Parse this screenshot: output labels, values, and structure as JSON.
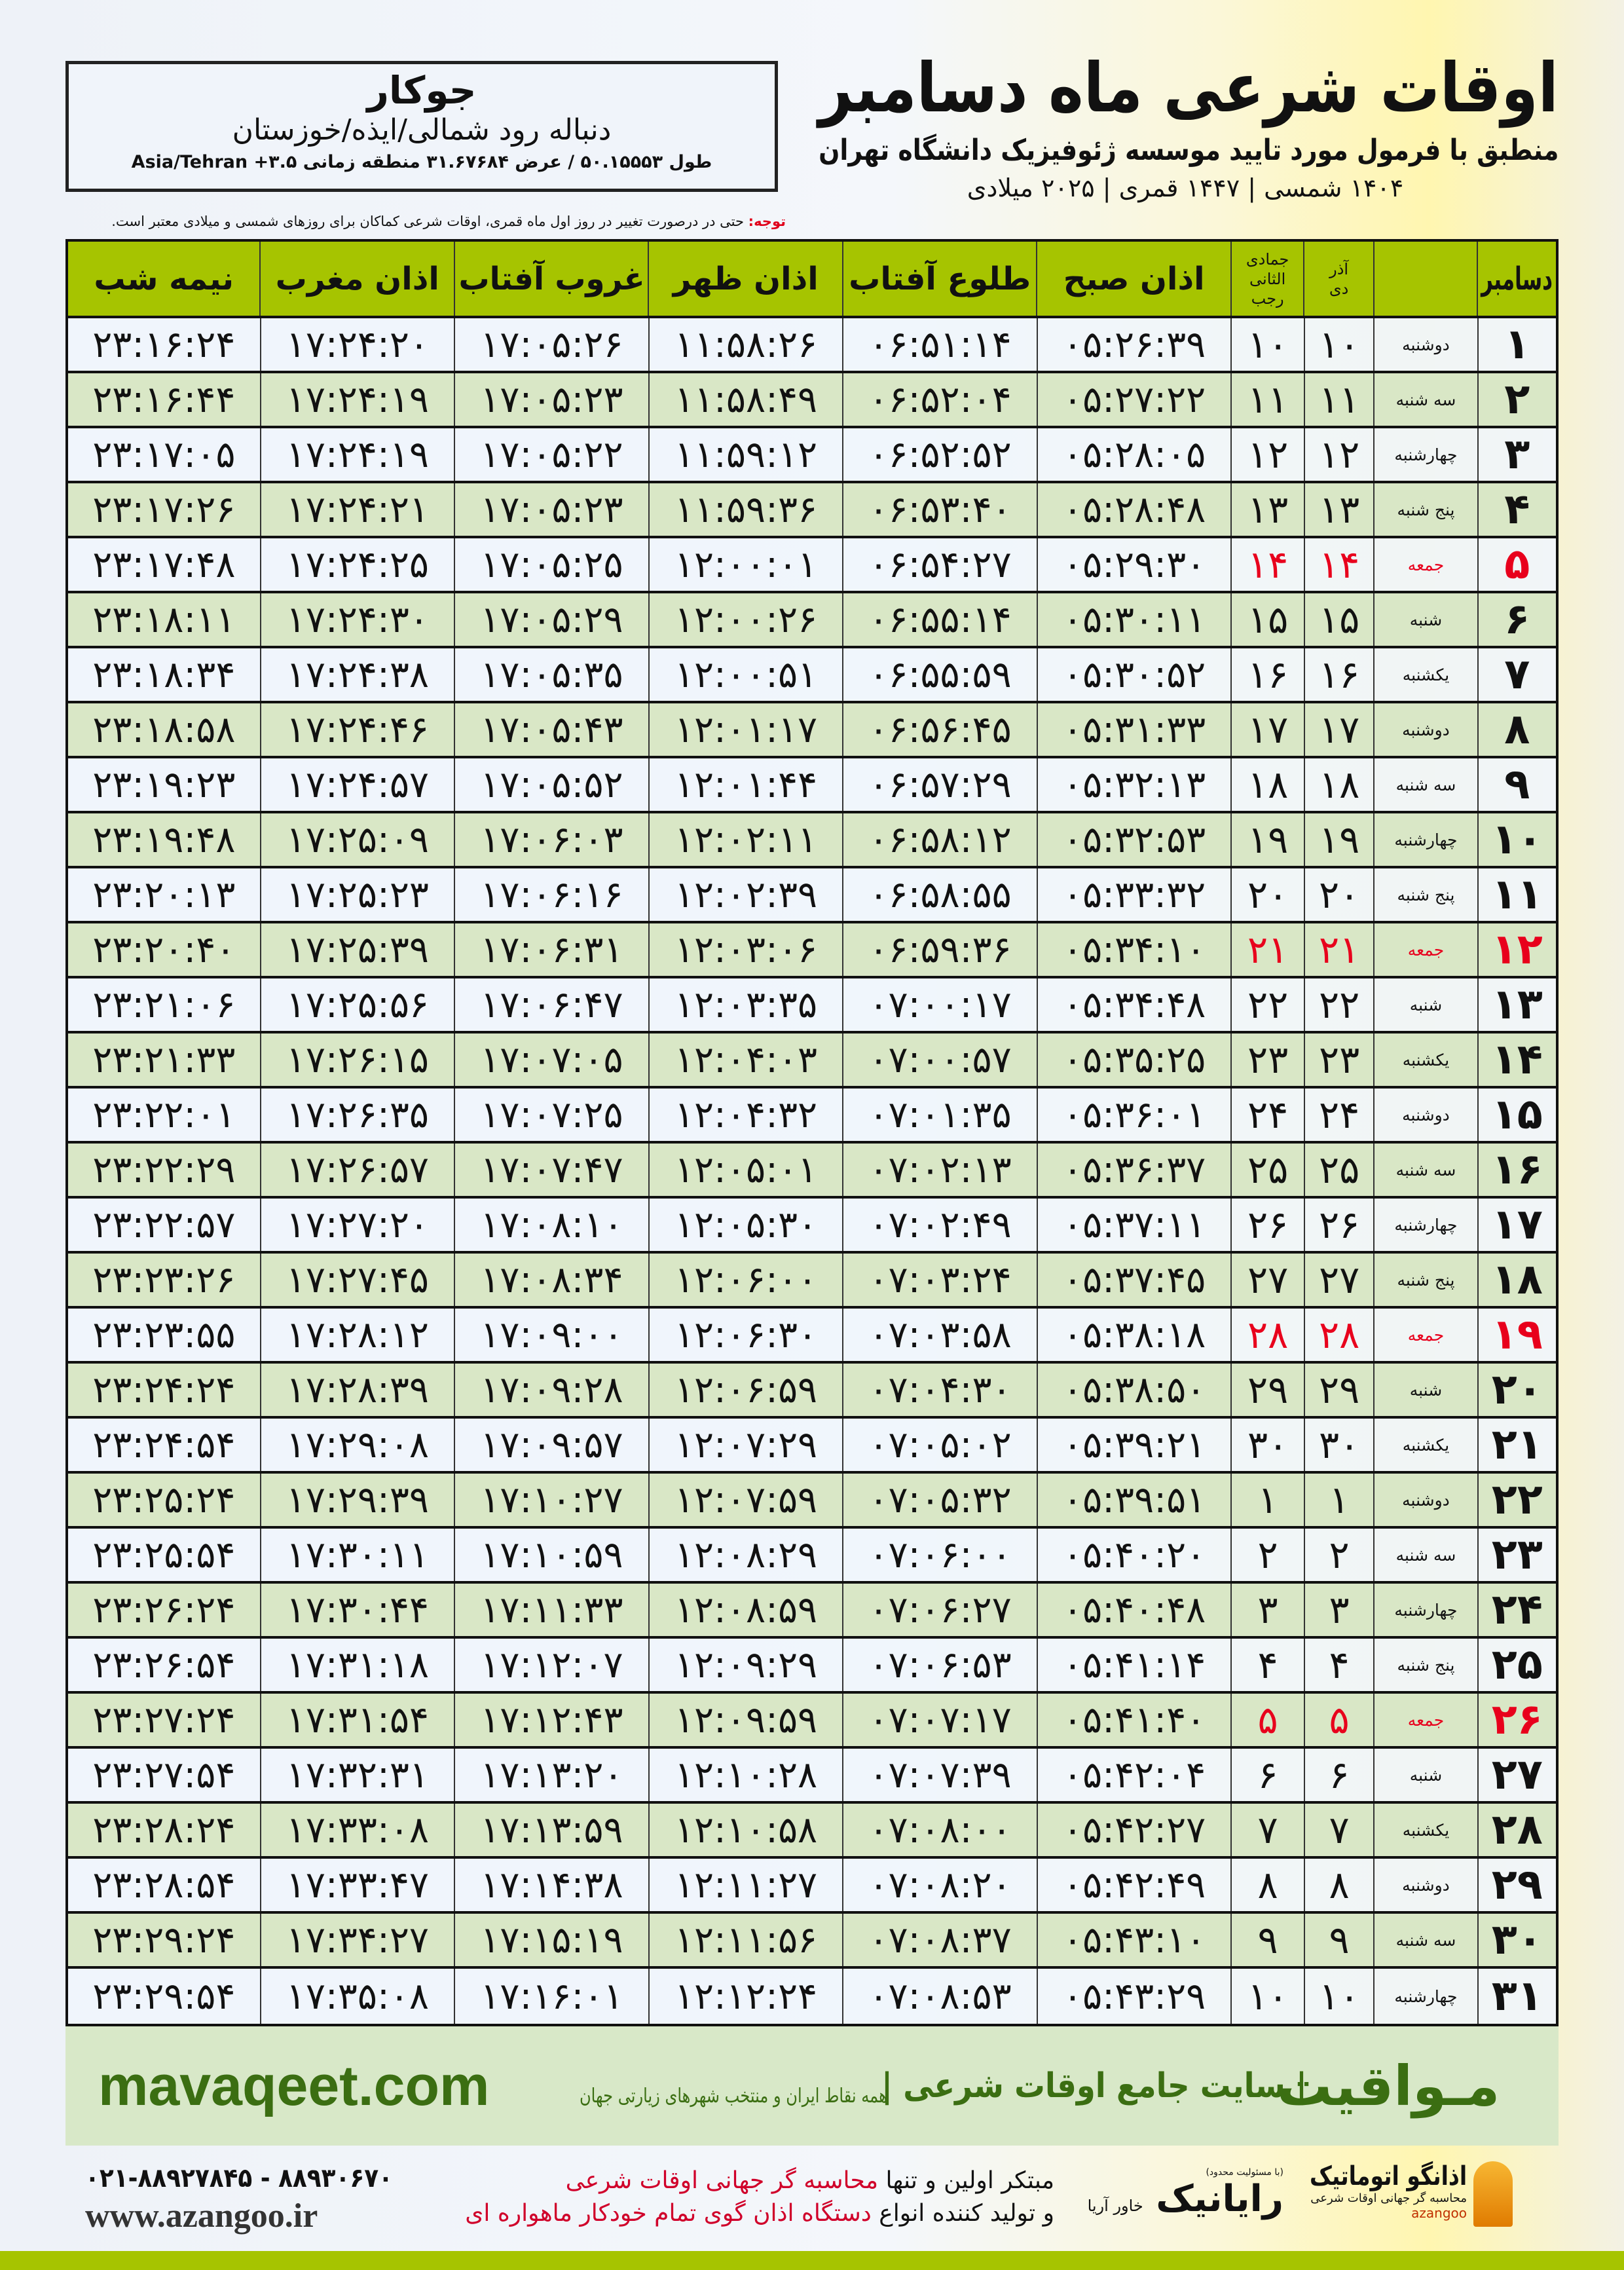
{
  "header": {
    "title": "اوقات شرعی ماه دسامبر",
    "subtitle": "منطبق با فرمول مورد تایید موسسه ژئوفیزیک دانشگاه تهران",
    "dates": "۱۴۰۴ شمسی | ۱۴۴۷ قمری | ۲۰۲۵ میلادی",
    "note_label": "توجه:",
    "note_text": " حتی در درصورت تغییر در روز اول ماه قمری، اوقات شرعی کماکان برای روزهای شمسی و میلادی معتبر است."
  },
  "location": {
    "name": "جوکار",
    "region": "دنباله رود شمالی/ایذه/خوزستان",
    "coords": "طول ۵۰.۱۵۵۵۳ / عرض ۳۱.۶۷۶۸۴ منطقه زمانی ۳.۵+ Asia/Tehran"
  },
  "table": {
    "columns": {
      "day": "دسامبر",
      "dey": "دی",
      "dey_top": "آذر",
      "rajab": "رجب",
      "rajab_top": "جمادی الثانی",
      "sobh": "اذان صبح",
      "tolu": "طلوع آفتاب",
      "zohr": "اذان ظهر",
      "ghorub": "غروب آفتاب",
      "maghrib": "اذان مغرب",
      "nimeshab": "نیمه شب"
    },
    "friday_color": "#e8001c",
    "header_color": "#a6c400",
    "rows": [
      [
        "۱",
        "دوشنبه",
        "۱۰",
        "۱۰",
        "۰۵:۲۶:۳۹",
        "۰۶:۵۱:۱۴",
        "۱۱:۵۸:۲۶",
        "۱۷:۰۵:۲۶",
        "۱۷:۲۴:۲۰",
        "۲۳:۱۶:۲۴"
      ],
      [
        "۲",
        "سه شنبه",
        "۱۱",
        "۱۱",
        "۰۵:۲۷:۲۲",
        "۰۶:۵۲:۰۴",
        "۱۱:۵۸:۴۹",
        "۱۷:۰۵:۲۳",
        "۱۷:۲۴:۱۹",
        "۲۳:۱۶:۴۴"
      ],
      [
        "۳",
        "چهارشنبه",
        "۱۲",
        "۱۲",
        "۰۵:۲۸:۰۵",
        "۰۶:۵۲:۵۲",
        "۱۱:۵۹:۱۲",
        "۱۷:۰۵:۲۲",
        "۱۷:۲۴:۱۹",
        "۲۳:۱۷:۰۵"
      ],
      [
        "۴",
        "پنج شنبه",
        "۱۳",
        "۱۳",
        "۰۵:۲۸:۴۸",
        "۰۶:۵۳:۴۰",
        "۱۱:۵۹:۳۶",
        "۱۷:۰۵:۲۳",
        "۱۷:۲۴:۲۱",
        "۲۳:۱۷:۲۶"
      ],
      [
        "۵",
        "جمعه",
        "۱۴",
        "۱۴",
        "۰۵:۲۹:۳۰",
        "۰۶:۵۴:۲۷",
        "۱۲:۰۰:۰۱",
        "۱۷:۰۵:۲۵",
        "۱۷:۲۴:۲۵",
        "۲۳:۱۷:۴۸"
      ],
      [
        "۶",
        "شنبه",
        "۱۵",
        "۱۵",
        "۰۵:۳۰:۱۱",
        "۰۶:۵۵:۱۴",
        "۱۲:۰۰:۲۶",
        "۱۷:۰۵:۲۹",
        "۱۷:۲۴:۳۰",
        "۲۳:۱۸:۱۱"
      ],
      [
        "۷",
        "یکشنبه",
        "۱۶",
        "۱۶",
        "۰۵:۳۰:۵۲",
        "۰۶:۵۵:۵۹",
        "۱۲:۰۰:۵۱",
        "۱۷:۰۵:۳۵",
        "۱۷:۲۴:۳۸",
        "۲۳:۱۸:۳۴"
      ],
      [
        "۸",
        "دوشنبه",
        "۱۷",
        "۱۷",
        "۰۵:۳۱:۳۳",
        "۰۶:۵۶:۴۵",
        "۱۲:۰۱:۱۷",
        "۱۷:۰۵:۴۳",
        "۱۷:۲۴:۴۶",
        "۲۳:۱۸:۵۸"
      ],
      [
        "۹",
        "سه شنبه",
        "۱۸",
        "۱۸",
        "۰۵:۳۲:۱۳",
        "۰۶:۵۷:۲۹",
        "۱۲:۰۱:۴۴",
        "۱۷:۰۵:۵۲",
        "۱۷:۲۴:۵۷",
        "۲۳:۱۹:۲۳"
      ],
      [
        "۱۰",
        "چهارشنبه",
        "۱۹",
        "۱۹",
        "۰۵:۳۲:۵۳",
        "۰۶:۵۸:۱۲",
        "۱۲:۰۲:۱۱",
        "۱۷:۰۶:۰۳",
        "۱۷:۲۵:۰۹",
        "۲۳:۱۹:۴۸"
      ],
      [
        "۱۱",
        "پنج شنبه",
        "۲۰",
        "۲۰",
        "۰۵:۳۳:۳۲",
        "۰۶:۵۸:۵۵",
        "۱۲:۰۲:۳۹",
        "۱۷:۰۶:۱۶",
        "۱۷:۲۵:۲۳",
        "۲۳:۲۰:۱۳"
      ],
      [
        "۱۲",
        "جمعه",
        "۲۱",
        "۲۱",
        "۰۵:۳۴:۱۰",
        "۰۶:۵۹:۳۶",
        "۱۲:۰۳:۰۶",
        "۱۷:۰۶:۳۱",
        "۱۷:۲۵:۳۹",
        "۲۳:۲۰:۴۰"
      ],
      [
        "۱۳",
        "شنبه",
        "۲۲",
        "۲۲",
        "۰۵:۳۴:۴۸",
        "۰۷:۰۰:۱۷",
        "۱۲:۰۳:۳۵",
        "۱۷:۰۶:۴۷",
        "۱۷:۲۵:۵۶",
        "۲۳:۲۱:۰۶"
      ],
      [
        "۱۴",
        "یکشنبه",
        "۲۳",
        "۲۳",
        "۰۵:۳۵:۲۵",
        "۰۷:۰۰:۵۷",
        "۱۲:۰۴:۰۳",
        "۱۷:۰۷:۰۵",
        "۱۷:۲۶:۱۵",
        "۲۳:۲۱:۳۳"
      ],
      [
        "۱۵",
        "دوشنبه",
        "۲۴",
        "۲۴",
        "۰۵:۳۶:۰۱",
        "۰۷:۰۱:۳۵",
        "۱۲:۰۴:۳۲",
        "۱۷:۰۷:۲۵",
        "۱۷:۲۶:۳۵",
        "۲۳:۲۲:۰۱"
      ],
      [
        "۱۶",
        "سه شنبه",
        "۲۵",
        "۲۵",
        "۰۵:۳۶:۳۷",
        "۰۷:۰۲:۱۳",
        "۱۲:۰۵:۰۱",
        "۱۷:۰۷:۴۷",
        "۱۷:۲۶:۵۷",
        "۲۳:۲۲:۲۹"
      ],
      [
        "۱۷",
        "چهارشنبه",
        "۲۶",
        "۲۶",
        "۰۵:۳۷:۱۱",
        "۰۷:۰۲:۴۹",
        "۱۲:۰۵:۳۰",
        "۱۷:۰۸:۱۰",
        "۱۷:۲۷:۲۰",
        "۲۳:۲۲:۵۷"
      ],
      [
        "۱۸",
        "پنج شنبه",
        "۲۷",
        "۲۷",
        "۰۵:۳۷:۴۵",
        "۰۷:۰۳:۲۴",
        "۱۲:۰۶:۰۰",
        "۱۷:۰۸:۳۴",
        "۱۷:۲۷:۴۵",
        "۲۳:۲۳:۲۶"
      ],
      [
        "۱۹",
        "جمعه",
        "۲۸",
        "۲۸",
        "۰۵:۳۸:۱۸",
        "۰۷:۰۳:۵۸",
        "۱۲:۰۶:۳۰",
        "۱۷:۰۹:۰۰",
        "۱۷:۲۸:۱۲",
        "۲۳:۲۳:۵۵"
      ],
      [
        "۲۰",
        "شنبه",
        "۲۹",
        "۲۹",
        "۰۵:۳۸:۵۰",
        "۰۷:۰۴:۳۰",
        "۱۲:۰۶:۵۹",
        "۱۷:۰۹:۲۸",
        "۱۷:۲۸:۳۹",
        "۲۳:۲۴:۲۴"
      ],
      [
        "۲۱",
        "یکشنبه",
        "۳۰",
        "۳۰",
        "۰۵:۳۹:۲۱",
        "۰۷:۰۵:۰۲",
        "۱۲:۰۷:۲۹",
        "۱۷:۰۹:۵۷",
        "۱۷:۲۹:۰۸",
        "۲۳:۲۴:۵۴"
      ],
      [
        "۲۲",
        "دوشنبه",
        "۱",
        "۱",
        "۰۵:۳۹:۵۱",
        "۰۷:۰۵:۳۲",
        "۱۲:۰۷:۵۹",
        "۱۷:۱۰:۲۷",
        "۱۷:۲۹:۳۹",
        "۲۳:۲۵:۲۴"
      ],
      [
        "۲۳",
        "سه شنبه",
        "۲",
        "۲",
        "۰۵:۴۰:۲۰",
        "۰۷:۰۶:۰۰",
        "۱۲:۰۸:۲۹",
        "۱۷:۱۰:۵۹",
        "۱۷:۳۰:۱۱",
        "۲۳:۲۵:۵۴"
      ],
      [
        "۲۴",
        "چهارشنبه",
        "۳",
        "۳",
        "۰۵:۴۰:۴۸",
        "۰۷:۰۶:۲۷",
        "۱۲:۰۸:۵۹",
        "۱۷:۱۱:۳۳",
        "۱۷:۳۰:۴۴",
        "۲۳:۲۶:۲۴"
      ],
      [
        "۲۵",
        "پنج شنبه",
        "۴",
        "۴",
        "۰۵:۴۱:۱۴",
        "۰۷:۰۶:۵۳",
        "۱۲:۰۹:۲۹",
        "۱۷:۱۲:۰۷",
        "۱۷:۳۱:۱۸",
        "۲۳:۲۶:۵۴"
      ],
      [
        "۲۶",
        "جمعه",
        "۵",
        "۵",
        "۰۵:۴۱:۴۰",
        "۰۷:۰۷:۱۷",
        "۱۲:۰۹:۵۹",
        "۱۷:۱۲:۴۳",
        "۱۷:۳۱:۵۴",
        "۲۳:۲۷:۲۴"
      ],
      [
        "۲۷",
        "شنبه",
        "۶",
        "۶",
        "۰۵:۴۲:۰۴",
        "۰۷:۰۷:۳۹",
        "۱۲:۱۰:۲۸",
        "۱۷:۱۳:۲۰",
        "۱۷:۳۲:۳۱",
        "۲۳:۲۷:۵۴"
      ],
      [
        "۲۸",
        "یکشنبه",
        "۷",
        "۷",
        "۰۵:۴۲:۲۷",
        "۰۷:۰۸:۰۰",
        "۱۲:۱۰:۵۸",
        "۱۷:۱۳:۵۹",
        "۱۷:۳۳:۰۸",
        "۲۳:۲۸:۲۴"
      ],
      [
        "۲۹",
        "دوشنبه",
        "۸",
        "۸",
        "۰۵:۴۲:۴۹",
        "۰۷:۰۸:۲۰",
        "۱۲:۱۱:۲۷",
        "۱۷:۱۴:۳۸",
        "۱۷:۳۳:۴۷",
        "۲۳:۲۸:۵۴"
      ],
      [
        "۳۰",
        "سه شنبه",
        "۹",
        "۹",
        "۰۵:۴۳:۱۰",
        "۰۷:۰۸:۳۷",
        "۱۲:۱۱:۵۶",
        "۱۷:۱۵:۱۹",
        "۱۷:۳۴:۲۷",
        "۲۳:۲۹:۲۴"
      ],
      [
        "۳۱",
        "چهارشنبه",
        "۱۰",
        "۱۰",
        "۰۵:۴۳:۲۹",
        "۰۷:۰۸:۵۳",
        "۱۲:۱۲:۲۴",
        "۱۷:۱۶:۰۱",
        "۱۷:۳۵:۰۸",
        "۲۳:۲۹:۵۴"
      ]
    ]
  },
  "footer": {
    "brand": "مـواقیت",
    "brand_desc": "| سایت جامع اوقات شرعی |",
    "brand_sub": "همه نقاط ایران و منتخب شهرهای زیارتی جهان",
    "brand_url": "mavaqeet.com",
    "brand_color": "#3b6e12",
    "azangoo_name": "اذانگو اتوماتیک",
    "azangoo_tag": "محاسبه گر جهانی اوقات شرعی",
    "azangoo_latin": "azangoo",
    "rayanik": "رایانیک",
    "rayanik_sub": "خاور آریا",
    "rayanik_note": "(با مسئولیت محدود)",
    "promo_1a": "مبتکر اولین و تنها ",
    "promo_1b": "محاسبه گر جهانی اوقات شرعی",
    "promo_2a": "و تولید کننده انواع ",
    "promo_2b": "دستگاه اذان گوی تمام خودکار ماهواره ای",
    "phone": "۰۲۱-۸۸۹۲۷۸۴۵ - ۸۸۹۳۰۶۷۰",
    "site": "www.azangoo.ir"
  }
}
